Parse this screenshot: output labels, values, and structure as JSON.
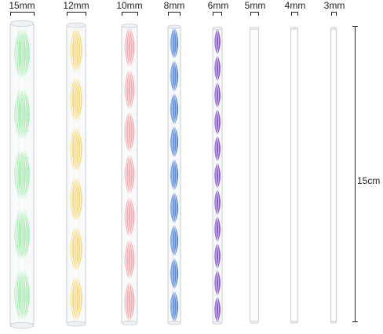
{
  "rods": [
    {
      "label": "15mm",
      "color": "#8ee69a",
      "spiral": true
    },
    {
      "label": "12mm",
      "color": "#f5d36a",
      "spiral": true
    },
    {
      "label": "10mm",
      "color": "#f5a0a3",
      "spiral": true
    },
    {
      "label": "8mm",
      "color": "#3f78d6",
      "spiral": true
    },
    {
      "label": "6mm",
      "color": "#7a3fc9",
      "spiral": true
    },
    {
      "label": "5mm",
      "color": "#d8dde2",
      "spiral": false
    },
    {
      "label": "4mm",
      "color": "#d8dde2",
      "spiral": false
    },
    {
      "label": "3mm",
      "color": "#d8dde2",
      "spiral": false
    }
  ],
  "length_label": "15cm"
}
